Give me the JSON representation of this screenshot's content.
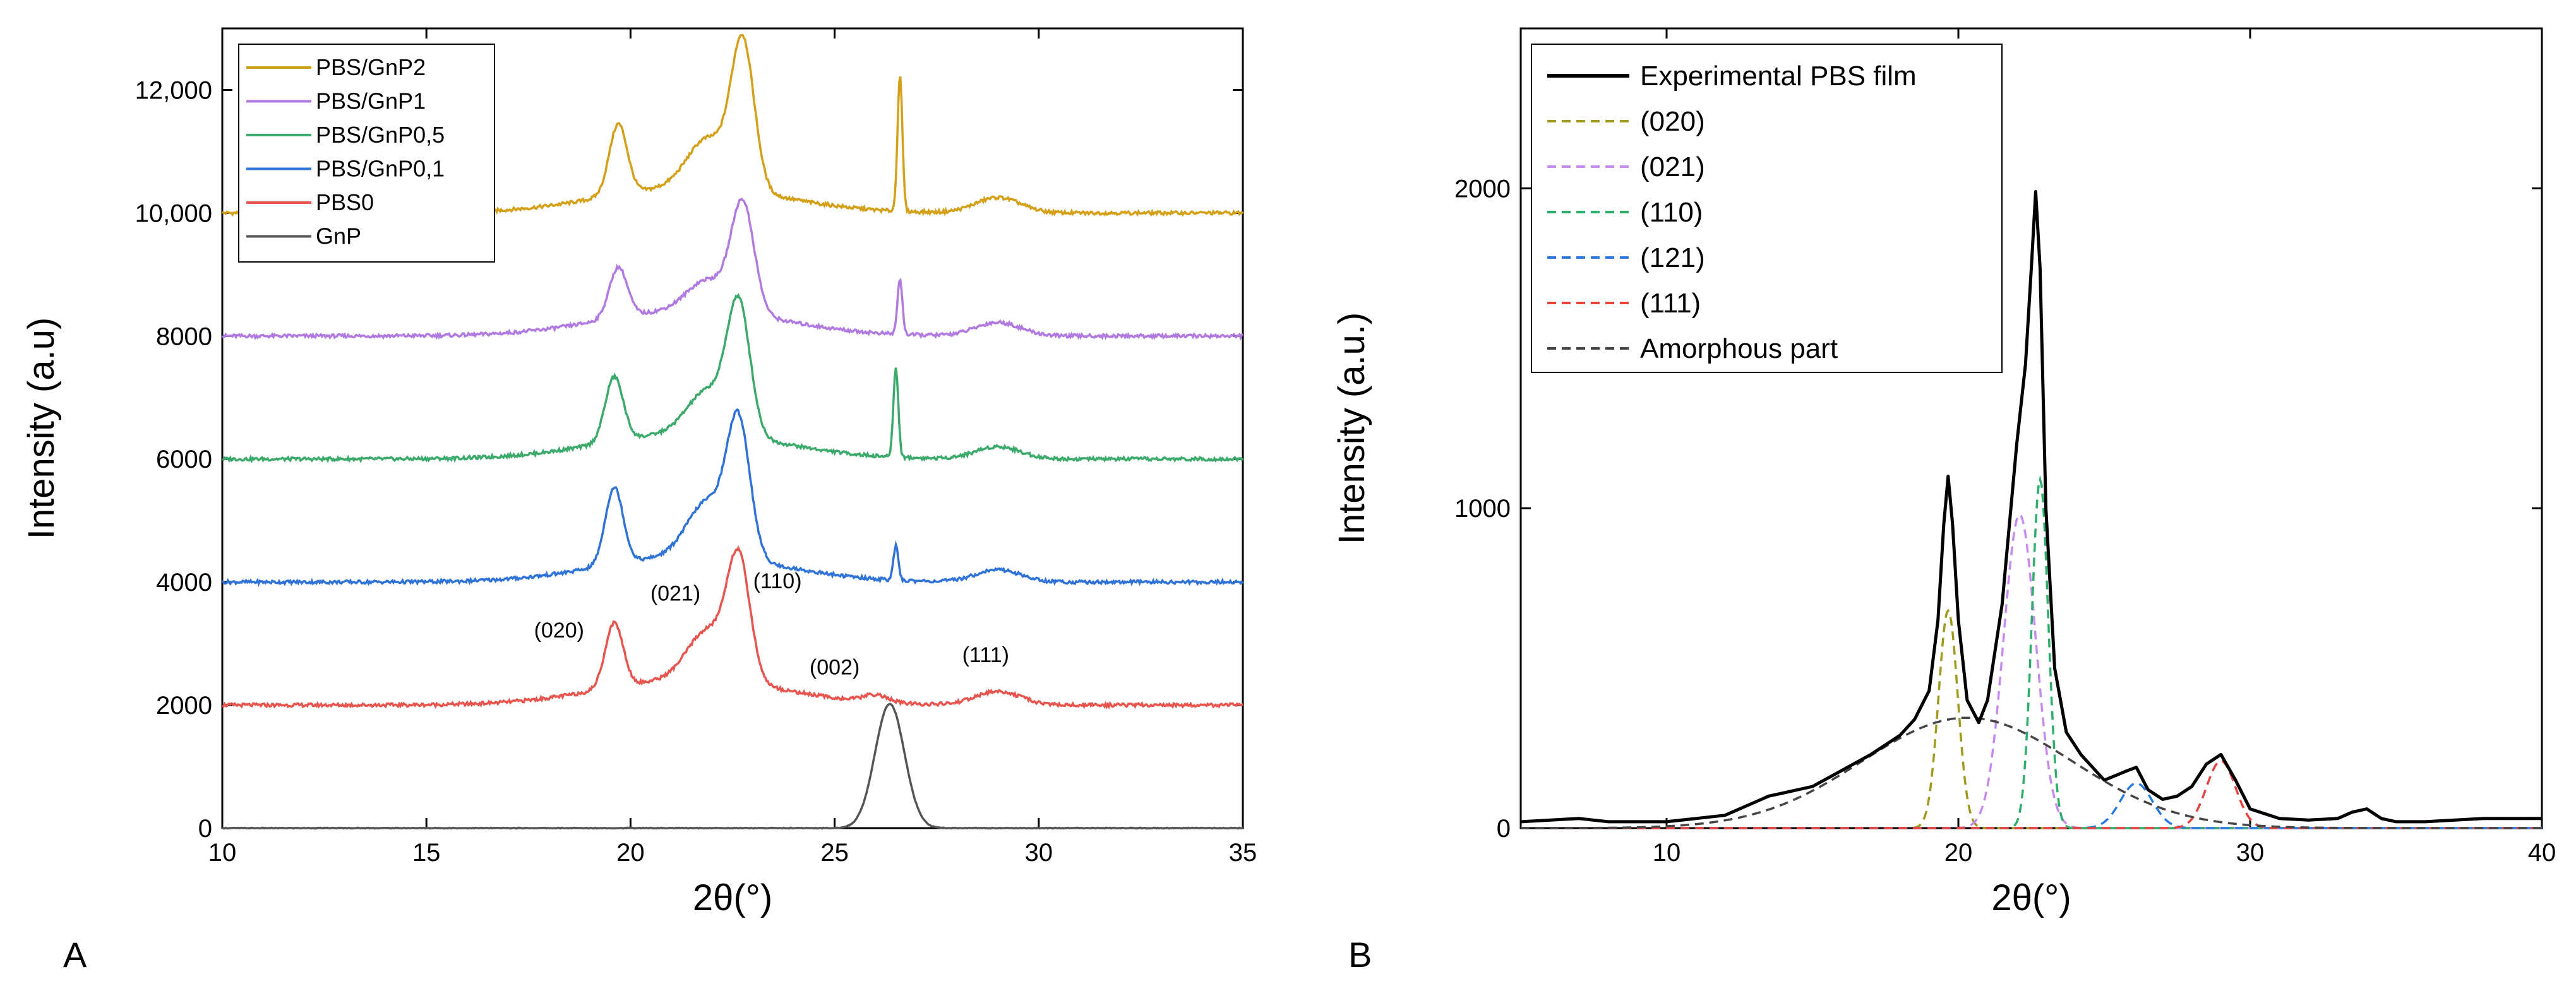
{
  "panel_labels": {
    "a": "A",
    "b": "B"
  },
  "chart_data": [
    {
      "id": "A",
      "type": "line",
      "xlabel": "2θ(°)",
      "ylabel": "Intensity (a.u)",
      "xlim": [
        10,
        35
      ],
      "ylim": [
        0,
        13000
      ],
      "x_ticks": [
        10,
        15,
        20,
        25,
        30,
        35
      ],
      "y_ticks": [
        0,
        2000,
        4000,
        6000,
        8000,
        10000,
        12000
      ],
      "y_tick_labels": [
        "0",
        "2000",
        "4000",
        "6000",
        "8000",
        "10,000",
        "12,000"
      ],
      "legend_position": "top-left",
      "series": [
        {
          "name": "PBS/GnP2",
          "color": "#D4A017",
          "baseline": 10000,
          "peaks": [
            [
              19.7,
              1150,
              0.22
            ],
            [
              21.9,
              800,
              0.5
            ],
            [
              22.75,
              2350,
              0.28
            ],
            [
              26.6,
              2200,
              0.06
            ],
            [
              29.0,
              250,
              0.55
            ]
          ]
        },
        {
          "name": "PBS/GnP1",
          "color": "#B07AE0",
          "baseline": 8000,
          "peaks": [
            [
              19.7,
              820,
              0.22
            ],
            [
              21.9,
              500,
              0.5
            ],
            [
              22.75,
              1750,
              0.28
            ],
            [
              26.6,
              900,
              0.06
            ],
            [
              29.0,
              220,
              0.55
            ]
          ]
        },
        {
          "name": "PBS/GnP0,5",
          "color": "#3BAA6B",
          "baseline": 6000,
          "peaks": [
            [
              19.6,
              1050,
              0.22
            ],
            [
              21.9,
              700,
              0.5
            ],
            [
              22.65,
              2050,
              0.28
            ],
            [
              26.5,
              1450,
              0.06
            ],
            [
              29.0,
              200,
              0.55
            ]
          ]
        },
        {
          "name": "PBS/GnP0,1",
          "color": "#2F72D8",
          "baseline": 4000,
          "peaks": [
            [
              19.6,
              1250,
              0.22
            ],
            [
              21.9,
              900,
              0.5
            ],
            [
              22.65,
              2100,
              0.28
            ],
            [
              26.5,
              550,
              0.06
            ],
            [
              29.0,
              200,
              0.55
            ]
          ]
        },
        {
          "name": "PBS0",
          "color": "#E8554E",
          "baseline": 2000,
          "peaks": [
            [
              19.6,
              1050,
              0.22
            ],
            [
              21.9,
              800,
              0.5
            ],
            [
              22.65,
              1900,
              0.28
            ],
            [
              26.0,
              120,
              0.3
            ],
            [
              29.0,
              220,
              0.55
            ]
          ]
        },
        {
          "name": "GnP",
          "color": "#555555",
          "baseline": 0,
          "peaks": [
            [
              26.35,
              2020,
              0.36
            ]
          ]
        }
      ],
      "annotations": [
        {
          "text": "(020)",
          "x": 18.25,
          "y": 3100
        },
        {
          "text": "(021)",
          "x": 21.1,
          "y": 3700
        },
        {
          "text": "(110)",
          "x": 23.6,
          "y": 3900
        },
        {
          "text": "(111)",
          "x": 28.7,
          "y": 2700
        },
        {
          "text": "(002)",
          "x": 25.0,
          "y": 2500
        }
      ]
    },
    {
      "id": "B",
      "type": "line",
      "xlabel": "2θ(°)",
      "ylabel": "Intensity (a.u.)",
      "xlim": [
        5,
        40
      ],
      "ylim": [
        0,
        2500
      ],
      "x_ticks": [
        10,
        20,
        30,
        40
      ],
      "y_ticks": [
        0,
        1000,
        2000
      ],
      "legend_position": "top-left",
      "series": [
        {
          "name": "Experimental PBS film",
          "color": "#000000",
          "style": "solid",
          "x": [
            5,
            7,
            8,
            10,
            11,
            12,
            13,
            13.5,
            14,
            15,
            16,
            17,
            18,
            18.5,
            19,
            19.3,
            19.5,
            19.65,
            19.8,
            20.0,
            20.3,
            20.7,
            21.0,
            21.5,
            22.0,
            22.3,
            22.5,
            22.65,
            22.8,
            23.0,
            23.3,
            23.7,
            24.2,
            25.0,
            25.8,
            26.1,
            26.5,
            27.0,
            27.5,
            28.0,
            28.5,
            29.0,
            29.5,
            30.0,
            31.0,
            32.0,
            33.0,
            33.5,
            34.0,
            34.5,
            35.0,
            36.0,
            38.0,
            40.0
          ],
          "y": [
            20,
            30,
            20,
            20,
            30,
            40,
            80,
            100,
            110,
            130,
            180,
            230,
            290,
            340,
            430,
            650,
            950,
            1100,
            950,
            650,
            400,
            330,
            400,
            700,
            1200,
            1450,
            1750,
            1990,
            1750,
            1000,
            500,
            300,
            230,
            150,
            180,
            190,
            120,
            90,
            100,
            130,
            200,
            230,
            150,
            60,
            30,
            25,
            30,
            50,
            60,
            30,
            20,
            20,
            30,
            30
          ]
        },
        {
          "name": "(020)",
          "color": "#A09B1E",
          "style": "dashed",
          "peak": [
            19.65,
            680,
            0.33
          ]
        },
        {
          "name": "(021)",
          "color": "#C58BF0",
          "style": "dashed",
          "peak": [
            22.1,
            980,
            0.55
          ]
        },
        {
          "name": "(110)",
          "color": "#2EAE6B",
          "style": "dashed",
          "peak": [
            22.8,
            1090,
            0.28
          ]
        },
        {
          "name": "(121)",
          "color": "#2A7BE0",
          "style": "dashed",
          "peak": [
            26.1,
            140,
            0.55
          ]
        },
        {
          "name": "(111)",
          "color": "#E8433F",
          "style": "dashed",
          "peak": [
            29.0,
            210,
            0.5
          ]
        },
        {
          "name": "Amorphous part",
          "color": "#444444",
          "style": "dashed",
          "peak": [
            20.3,
            345,
            3.6
          ]
        }
      ]
    }
  ]
}
